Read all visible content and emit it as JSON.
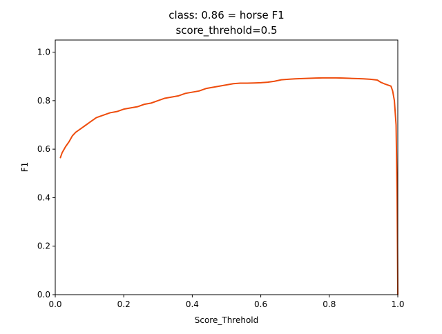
{
  "chart_data": {
    "type": "line",
    "title": "class: 0.86 = horse F1",
    "subtitle": "score_threhold=0.5",
    "xlabel": "Score_Threhold",
    "ylabel": "F1",
    "xlim": [
      0.0,
      1.0
    ],
    "ylim": [
      0.0,
      1.05
    ],
    "x_ticks": [
      0.0,
      0.2,
      0.4,
      0.6,
      0.8,
      1.0
    ],
    "x_tick_labels": [
      "0.0",
      "0.2",
      "0.4",
      "0.6",
      "0.8",
      "1.0"
    ],
    "y_ticks": [
      0.0,
      0.2,
      0.4,
      0.6,
      0.8,
      1.0
    ],
    "y_tick_labels": [
      "0.0",
      "0.2",
      "0.4",
      "0.6",
      "0.8",
      "1.0"
    ],
    "grid": false,
    "legend": "none",
    "line_color": "#ee4c0c",
    "series": [
      {
        "x": [
          0.015,
          0.02,
          0.03,
          0.04,
          0.05,
          0.06,
          0.07,
          0.08,
          0.09,
          0.1,
          0.12,
          0.14,
          0.16,
          0.18,
          0.2,
          0.22,
          0.24,
          0.26,
          0.28,
          0.3,
          0.32,
          0.34,
          0.36,
          0.38,
          0.4,
          0.42,
          0.44,
          0.46,
          0.48,
          0.5,
          0.52,
          0.54,
          0.56,
          0.58,
          0.6,
          0.62,
          0.64,
          0.66,
          0.68,
          0.7,
          0.72,
          0.74,
          0.76,
          0.78,
          0.8,
          0.82,
          0.84,
          0.86,
          0.88,
          0.9,
          0.92,
          0.94,
          0.95,
          0.96,
          0.97,
          0.98,
          0.985,
          0.99,
          0.995,
          0.998,
          1.0
        ],
        "y": [
          0.565,
          0.585,
          0.61,
          0.63,
          0.655,
          0.67,
          0.68,
          0.69,
          0.7,
          0.71,
          0.73,
          0.74,
          0.75,
          0.755,
          0.765,
          0.77,
          0.775,
          0.785,
          0.79,
          0.8,
          0.81,
          0.815,
          0.82,
          0.83,
          0.835,
          0.84,
          0.85,
          0.855,
          0.86,
          0.865,
          0.87,
          0.872,
          0.872,
          0.873,
          0.874,
          0.876,
          0.88,
          0.886,
          0.888,
          0.89,
          0.891,
          0.892,
          0.893,
          0.894,
          0.894,
          0.894,
          0.893,
          0.892,
          0.891,
          0.89,
          0.888,
          0.885,
          0.876,
          0.87,
          0.865,
          0.86,
          0.84,
          0.8,
          0.7,
          0.4,
          0.0
        ]
      }
    ]
  }
}
